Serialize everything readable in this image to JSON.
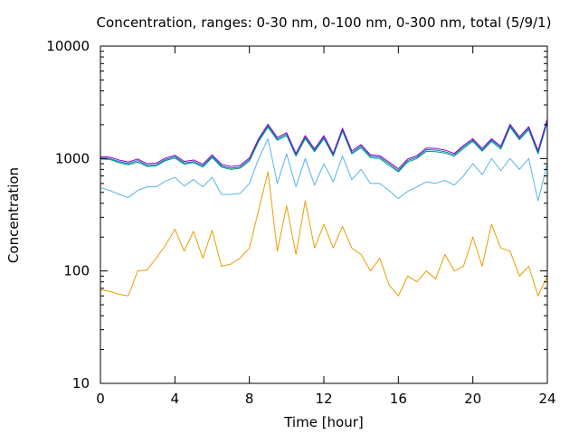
{
  "chart_data": {
    "type": "line",
    "title": "Concentration, ranges: 0-30 nm, 0-100 nm, 0-300 nm, total (5/9/1)",
    "xlabel": "Time [hour]",
    "ylabel": "Concentration",
    "xlim": [
      0,
      24
    ],
    "ylim": [
      10,
      10000
    ],
    "yscale": "log",
    "grid": false,
    "legend": "none",
    "x_ticks": [
      0,
      4,
      8,
      12,
      16,
      20,
      24
    ],
    "x_tick_labels": [
      "0",
      "4",
      "8",
      "12",
      "16",
      "20",
      "24"
    ],
    "y_ticks": [
      10,
      100,
      1000,
      10000
    ],
    "y_tick_labels": [
      "10",
      "100",
      "1000",
      "10000"
    ],
    "series": [
      {
        "color": "#e69f00",
        "x": [
          0,
          0.5,
          1,
          1.5,
          2,
          2.5,
          3,
          3.5,
          4,
          4.5,
          5,
          5.5,
          6,
          6.5,
          7,
          7.5,
          8,
          8.5,
          9,
          9.5,
          10,
          10.5,
          11,
          11.5,
          12,
          12.5,
          13,
          13.5,
          14,
          14.5,
          15,
          15.5,
          16,
          16.5,
          17,
          17.5,
          18,
          18.5,
          19,
          19.5,
          20,
          20.5,
          21,
          21.5,
          22,
          22.5,
          23,
          23.5,
          24
        ],
        "values": [
          68,
          66,
          62,
          60,
          100,
          102,
          130,
          170,
          235,
          150,
          225,
          130,
          230,
          110,
          115,
          130,
          160,
          350,
          760,
          150,
          380,
          140,
          420,
          160,
          260,
          160,
          250,
          160,
          140,
          100,
          130,
          75,
          60,
          90,
          80,
          100,
          85,
          140,
          100,
          110,
          200,
          110,
          260,
          160,
          150,
          90,
          110,
          60,
          90
        ]
      },
      {
        "color": "#56b4e9",
        "x": [
          0,
          0.5,
          1,
          1.5,
          2,
          2.5,
          3,
          3.5,
          4,
          4.5,
          5,
          5.5,
          6,
          6.5,
          7,
          7.5,
          8,
          8.5,
          9,
          9.5,
          10,
          10.5,
          11,
          11.5,
          12,
          12.5,
          13,
          13.5,
          14,
          14.5,
          15,
          15.5,
          16,
          16.5,
          17,
          17.5,
          18,
          18.5,
          19,
          19.5,
          20,
          20.5,
          21,
          21.5,
          22,
          22.5,
          23,
          23.5,
          24
        ],
        "values": [
          550,
          520,
          480,
          450,
          520,
          560,
          560,
          630,
          680,
          570,
          650,
          560,
          680,
          480,
          480,
          490,
          600,
          1000,
          1500,
          600,
          1100,
          560,
          1000,
          580,
          900,
          620,
          1050,
          650,
          800,
          600,
          600,
          520,
          440,
          510,
          560,
          620,
          600,
          640,
          580,
          700,
          900,
          720,
          1000,
          780,
          1000,
          800,
          1000,
          420,
          900
        ]
      },
      {
        "color": "#009e73",
        "x": [
          0,
          0.5,
          1,
          1.5,
          2,
          2.5,
          3,
          3.5,
          4,
          4.5,
          5,
          5.5,
          6,
          6.5,
          7,
          7.5,
          8,
          8.5,
          9,
          9.5,
          10,
          10.5,
          11,
          11.5,
          12,
          12.5,
          13,
          13.5,
          14,
          14.5,
          15,
          15.5,
          16,
          16.5,
          17,
          17.5,
          18,
          18.5,
          19,
          19.5,
          20,
          20.5,
          21,
          21.5,
          22,
          22.5,
          23,
          23.5,
          24
        ],
        "values": [
          990,
          980,
          920,
          880,
          930,
          850,
          860,
          960,
          1010,
          890,
          920,
          840,
          1020,
          840,
          800,
          820,
          950,
          1420,
          1900,
          1450,
          1600,
          1050,
          1500,
          1150,
          1500,
          1050,
          1750,
          1100,
          1250,
          1020,
          1000,
          870,
          760,
          930,
          1000,
          1160,
          1150,
          1120,
          1050,
          1230,
          1420,
          1160,
          1420,
          1210,
          1900,
          1470,
          1800,
          1100,
          2100
        ]
      },
      {
        "color": "#0072b2",
        "x": [
          0,
          0.5,
          1,
          1.5,
          2,
          2.5,
          3,
          3.5,
          4,
          4.5,
          5,
          5.5,
          6,
          6.5,
          7,
          7.5,
          8,
          8.5,
          9,
          9.5,
          10,
          10.5,
          11,
          11.5,
          12,
          12.5,
          13,
          13.5,
          14,
          14.5,
          15,
          15.5,
          16,
          16.5,
          17,
          17.5,
          18,
          18.5,
          19,
          19.5,
          20,
          20.5,
          21,
          21.5,
          22,
          22.5,
          23,
          23.5,
          24
        ],
        "values": [
          1010,
          1000,
          940,
          900,
          960,
          870,
          880,
          980,
          1040,
          910,
          940,
          860,
          1050,
          860,
          820,
          840,
          980,
          1460,
          1960,
          1490,
          1650,
          1080,
          1550,
          1180,
          1550,
          1080,
          1800,
          1130,
          1290,
          1050,
          1030,
          900,
          780,
          960,
          1030,
          1200,
          1190,
          1150,
          1080,
          1270,
          1460,
          1190,
          1460,
          1250,
          1960,
          1510,
          1860,
          1140,
          2180
        ]
      },
      {
        "color": "#9400d3",
        "x": [
          0,
          0.5,
          1,
          1.5,
          2,
          2.5,
          3,
          3.5,
          4,
          4.5,
          5,
          5.5,
          6,
          6.5,
          7,
          7.5,
          8,
          8.5,
          9,
          9.5,
          10,
          10.5,
          11,
          11.5,
          12,
          12.5,
          13,
          13.5,
          14,
          14.5,
          15,
          15.5,
          16,
          16.5,
          17,
          17.5,
          18,
          18.5,
          19,
          19.5,
          20,
          20.5,
          21,
          21.5,
          22,
          22.5,
          23,
          23.5,
          24
        ],
        "values": [
          1040,
          1030,
          970,
          930,
          990,
          900,
          910,
          1010,
          1070,
          940,
          970,
          890,
          1080,
          890,
          850,
          870,
          1010,
          1510,
          2020,
          1540,
          1700,
          1110,
          1600,
          1220,
          1600,
          1110,
          1860,
          1170,
          1330,
          1080,
          1060,
          930,
          810,
          990,
          1060,
          1240,
          1230,
          1190,
          1110,
          1310,
          1500,
          1230,
          1500,
          1290,
          2020,
          1560,
          1920,
          1180,
          2250
        ]
      }
    ]
  }
}
